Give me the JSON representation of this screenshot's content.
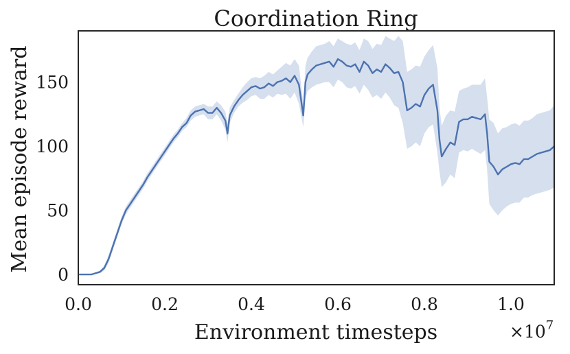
{
  "chart_data": {
    "type": "line",
    "title": "Coordination Ring",
    "xlabel": "Environment timesteps",
    "ylabel": "Mean episode reward",
    "x_offset_label": "×10",
    "x_offset_exponent": "7",
    "x_tick_labels": [
      "0.0",
      "0.2",
      "0.4",
      "0.6",
      "0.8",
      "1.0"
    ],
    "y_tick_labels": [
      "0",
      "50",
      "100",
      "150"
    ],
    "xlim": [
      0,
      1.1
    ],
    "ylim": [
      -8,
      190
    ],
    "grid": false,
    "line_color": "#4c72b0",
    "band_color": "#c7d4e8",
    "series": [
      {
        "x": [
          0,
          0.03,
          0.05,
          0.06,
          0.07,
          0.08,
          0.09,
          0.1,
          0.11,
          0.12,
          0.13,
          0.14,
          0.15,
          0.16,
          0.17,
          0.18,
          0.19,
          0.2,
          0.21,
          0.22,
          0.23,
          0.24,
          0.25,
          0.26,
          0.27,
          0.28,
          0.29,
          0.3,
          0.31,
          0.32,
          0.33,
          0.34,
          0.345,
          0.35,
          0.36,
          0.37,
          0.38,
          0.39,
          0.4,
          0.41,
          0.42,
          0.43,
          0.44,
          0.45,
          0.46,
          0.47,
          0.48,
          0.49,
          0.5,
          0.51,
          0.52,
          0.525,
          0.53,
          0.54,
          0.55,
          0.56,
          0.57,
          0.58,
          0.59,
          0.6,
          0.61,
          0.62,
          0.63,
          0.64,
          0.65,
          0.66,
          0.67,
          0.68,
          0.69,
          0.7,
          0.71,
          0.72,
          0.73,
          0.74,
          0.75,
          0.76,
          0.77,
          0.78,
          0.79,
          0.8,
          0.81,
          0.82,
          0.83,
          0.835,
          0.84,
          0.85,
          0.86,
          0.87,
          0.88,
          0.89,
          0.9,
          0.91,
          0.92,
          0.93,
          0.94,
          0.945,
          0.95,
          0.96,
          0.97,
          0.98,
          0.99,
          1.0,
          1.01,
          1.02,
          1.03,
          1.04,
          1.05,
          1.06,
          1.07,
          1.08,
          1.09,
          1.1
        ],
        "values": [
          0,
          0,
          2,
          5,
          12,
          22,
          32,
          42,
          50,
          55,
          60,
          65,
          70,
          76,
          81,
          86,
          91,
          96,
          101,
          106,
          110,
          115,
          118,
          124,
          127,
          128,
          129,
          126,
          126,
          130,
          126,
          120,
          110,
          124,
          131,
          136,
          140,
          143,
          146,
          147,
          145,
          146,
          149,
          147,
          150,
          151,
          153,
          150,
          155,
          148,
          124,
          150,
          156,
          160,
          163,
          164,
          165,
          166,
          162,
          168,
          166,
          163,
          162,
          164,
          158,
          166,
          163,
          157,
          160,
          158,
          164,
          161,
          157,
          158,
          150,
          128,
          130,
          133,
          131,
          140,
          145,
          148,
          128,
          105,
          92,
          98,
          103,
          101,
          119,
          121,
          121,
          123,
          122,
          121,
          125,
          110,
          88,
          84,
          78,
          82,
          84,
          86,
          87,
          86,
          90,
          90,
          92,
          94,
          95,
          96,
          97,
          100
        ],
        "lower": [
          0,
          0,
          1,
          3,
          9,
          19,
          29,
          39,
          47,
          52,
          57,
          62,
          67,
          73,
          78,
          83,
          88,
          93,
          98,
          103,
          107,
          112,
          115,
          120,
          123,
          124,
          125,
          121,
          121,
          125,
          120,
          113,
          103,
          118,
          126,
          131,
          134,
          136,
          139,
          140,
          137,
          137,
          140,
          138,
          141,
          140,
          141,
          137,
          142,
          133,
          115,
          137,
          143,
          146,
          148,
          149,
          150,
          150,
          146,
          152,
          150,
          146,
          145,
          147,
          141,
          148,
          144,
          138,
          140,
          137,
          142,
          138,
          132,
          130,
          118,
          98,
          100,
          103,
          100,
          110,
          115,
          117,
          95,
          80,
          68,
          72,
          78,
          75,
          95,
          97,
          96,
          98,
          96,
          94,
          97,
          82,
          55,
          50,
          46,
          50,
          53,
          55,
          56,
          56,
          60,
          60,
          62,
          63,
          64,
          65,
          66,
          68
        ],
        "upper": [
          0,
          0,
          3,
          7,
          15,
          25,
          35,
          45,
          53,
          58,
          63,
          68,
          73,
          79,
          84,
          89,
          94,
          99,
          104,
          109,
          113,
          118,
          122,
          128,
          131,
          132,
          133,
          131,
          131,
          135,
          132,
          127,
          118,
          130,
          136,
          141,
          146,
          150,
          153,
          154,
          153,
          155,
          158,
          156,
          159,
          162,
          165,
          163,
          168,
          163,
          133,
          163,
          169,
          174,
          178,
          179,
          180,
          182,
          178,
          184,
          182,
          180,
          179,
          181,
          175,
          184,
          182,
          176,
          180,
          179,
          186,
          184,
          182,
          186,
          182,
          158,
          160,
          163,
          162,
          170,
          175,
          179,
          161,
          130,
          116,
          124,
          128,
          127,
          143,
          145,
          146,
          148,
          148,
          148,
          153,
          138,
          121,
          118,
          110,
          114,
          115,
          117,
          118,
          116,
          120,
          120,
          122,
          125,
          126,
          127,
          128,
          132
        ]
      }
    ]
  }
}
